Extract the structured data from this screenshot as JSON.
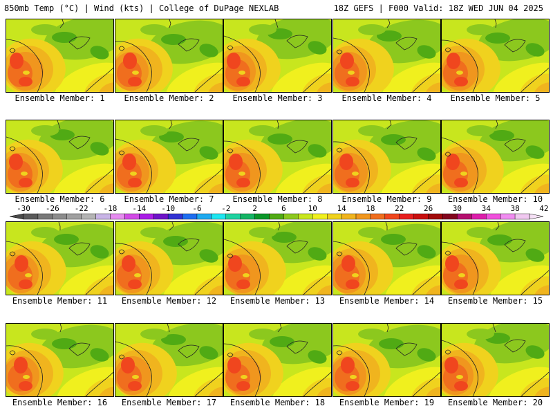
{
  "header": {
    "left": "850mb Temp (°C) | Wind (kts) | College of DuPage NEXLAB",
    "right": "18Z GEFS | F000 Valid: 18Z WED JUN 04 2025"
  },
  "panels": [
    {
      "label": "Ensemble Member: 1"
    },
    {
      "label": "Ensemble Member: 2"
    },
    {
      "label": "Ensemble Member: 3"
    },
    {
      "label": "Ensemble Member: 4"
    },
    {
      "label": "Ensemble Member: 5"
    },
    {
      "label": "Ensemble Member: 6"
    },
    {
      "label": "Ensemble Member: 7"
    },
    {
      "label": "Ensemble Member: 8"
    },
    {
      "label": "Ensemble Member: 9"
    },
    {
      "label": "Ensemble Member: 10"
    },
    {
      "label": "Ensemble Member: 11"
    },
    {
      "label": "Ensemble Member: 12"
    },
    {
      "label": "Ensemble Member: 13"
    },
    {
      "label": "Ensemble Member: 14"
    },
    {
      "label": "Ensemble Member: 15"
    },
    {
      "label": "Ensemble Member: 16"
    },
    {
      "label": "Ensemble Member: 17"
    },
    {
      "label": "Ensemble Member: 18"
    },
    {
      "label": "Ensemble Member: 19"
    },
    {
      "label": "Ensemble Member: 20"
    }
  ],
  "colorbar": {
    "tick_labels": [
      "-30",
      "-26",
      "-22",
      "-18",
      "-14",
      "-10",
      "-6",
      "-2",
      "2",
      "6",
      "10",
      "14",
      "18",
      "22",
      "26",
      "30",
      "34",
      "38",
      "42"
    ],
    "colors": [
      "#5a5a5a",
      "#787878",
      "#8c8c8c",
      "#a0a0a0",
      "#b4b4b4",
      "#c8b4e6",
      "#e68cf0",
      "#d24be6",
      "#aa1ee6",
      "#6e14c8",
      "#3232d2",
      "#1e6ef0",
      "#1eaaf0",
      "#1ee6f0",
      "#1ed2a0",
      "#14b464",
      "#0a9628",
      "#50aa14",
      "#8cc81e",
      "#c8e61e",
      "#f0f01e",
      "#f0d21e",
      "#f0b41e",
      "#f0961e",
      "#f06e1e",
      "#f0461e",
      "#e61e1e",
      "#c80f0f",
      "#a00a0a",
      "#82061e",
      "#b40f6e",
      "#dc1eaa",
      "#f050dc",
      "#f08cf0",
      "#f0c8f0"
    ]
  }
}
